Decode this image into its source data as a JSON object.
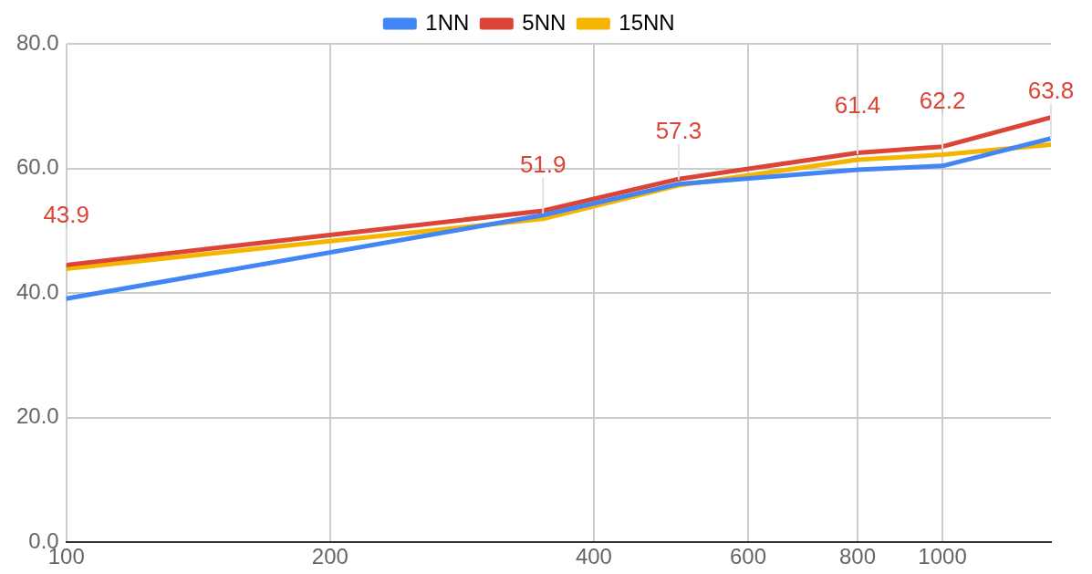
{
  "chart_data": {
    "type": "line",
    "x": [
      100,
      350,
      500,
      800,
      1000,
      1330
    ],
    "series": [
      {
        "name": "1NN",
        "color": "#4285f4",
        "values": [
          39.1,
          52.5,
          57.5,
          59.8,
          60.4,
          64.8
        ]
      },
      {
        "name": "5NN",
        "color": "#db4437",
        "values": [
          44.5,
          53.2,
          58.3,
          62.5,
          63.5,
          68.2
        ]
      },
      {
        "name": "15NN",
        "color": "#f4b400",
        "values": [
          43.9,
          51.9,
          57.3,
          61.4,
          62.2,
          63.8
        ],
        "value_labels": [
          "43.9",
          "51.9",
          "57.3",
          "61.4",
          "62.2",
          "63.8"
        ]
      }
    ],
    "log": "x",
    "xlim": [
      100,
      1330
    ],
    "xticks": [
      100,
      200,
      400,
      600,
      800,
      1000
    ],
    "ylim": [
      0,
      80
    ],
    "yticks": [
      {
        "value": 0,
        "label": "0.0"
      },
      {
        "value": 20,
        "label": "20.0"
      },
      {
        "value": 40,
        "label": "40.0"
      },
      {
        "value": 60,
        "label": "60.0"
      },
      {
        "value": 80,
        "label": "80.0"
      }
    ],
    "grid": true,
    "legend": "top",
    "marker": "none",
    "line_style": "solid"
  }
}
